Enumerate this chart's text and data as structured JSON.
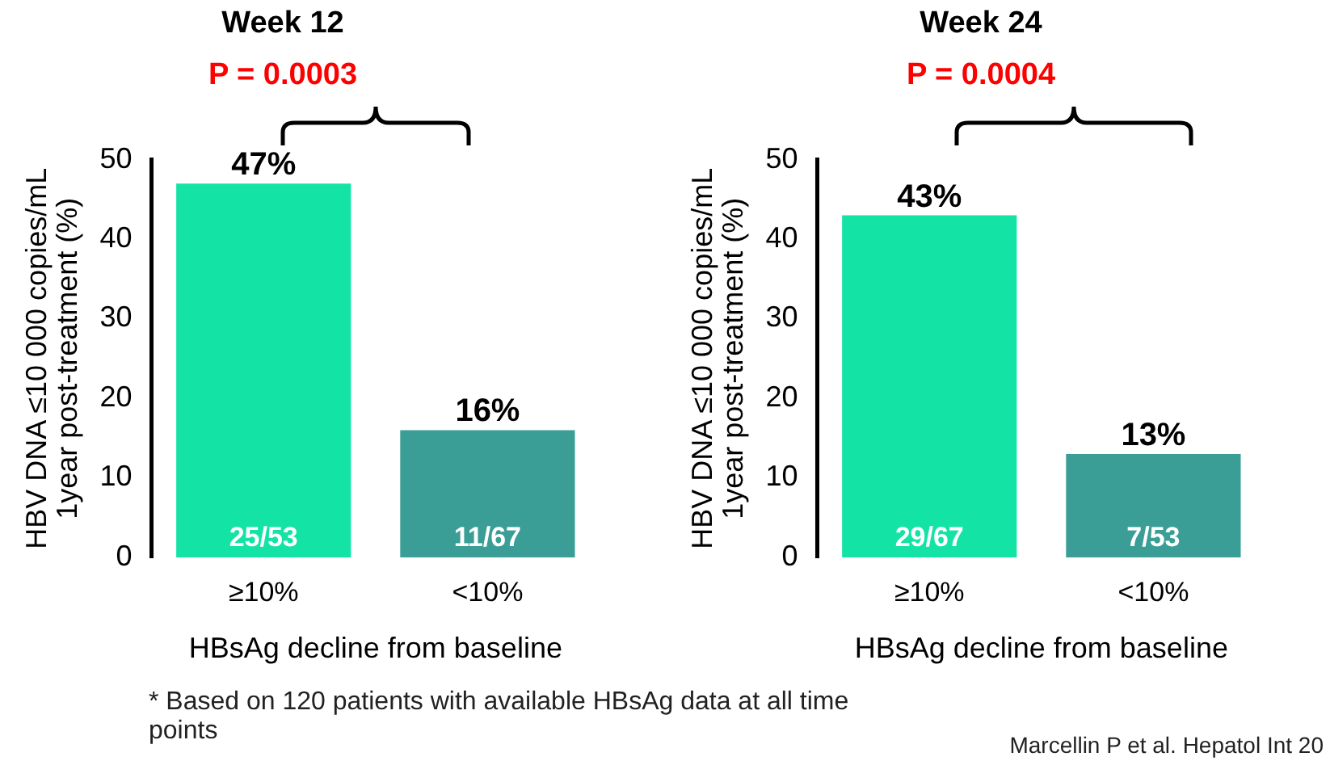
{
  "chart_data": [
    {
      "type": "bar",
      "title": "Week 12",
      "subtitle": "P = 0.0003",
      "xlabel": "HBsAg decline from baseline",
      "ylabel": "HBV DNA ≤10 000 copies/mL\n1year post-treatment (%)",
      "categories": [
        "≥10%",
        "<10%"
      ],
      "values": [
        47,
        16
      ],
      "colors": [
        "#14e3a6",
        "#3a9e96"
      ],
      "value_labels": [
        "47%",
        "16%"
      ],
      "ylim": [
        0,
        50
      ],
      "yticks": [
        0,
        10,
        20,
        30,
        40,
        50
      ],
      "grid": false,
      "annotations": [
        {
          "text": "25/53",
          "x": "≥10%",
          "y": 0
        },
        {
          "text": "11/67",
          "x": "<10%",
          "y": 0
        },
        "* Based on 120 patients with available HBsAg data at all time points"
      ]
    },
    {
      "type": "bar",
      "title": "Week 24",
      "subtitle": "P = 0.0004",
      "xlabel": "HBsAg decline from baseline",
      "ylabel": "HBV DNA ≤10 000 copies/mL\n1year post-treatment (%)",
      "categories": [
        "≥10%",
        "<10%"
      ],
      "values": [
        43,
        13
      ],
      "colors": [
        "#14e3a6",
        "#3a9e96"
      ],
      "value_labels": [
        "43%",
        "13%"
      ],
      "ylim": [
        0,
        50
      ],
      "yticks": [
        0,
        10,
        20,
        30,
        40,
        50
      ],
      "grid": false,
      "annotations": [
        {
          "text": "29/67",
          "x": "≥10%",
          "y": 0
        },
        {
          "text": "7/53",
          "x": "<10%",
          "y": 0
        },
        "Marcellin P et al. Hepatol Int 20"
      ]
    }
  ]
}
